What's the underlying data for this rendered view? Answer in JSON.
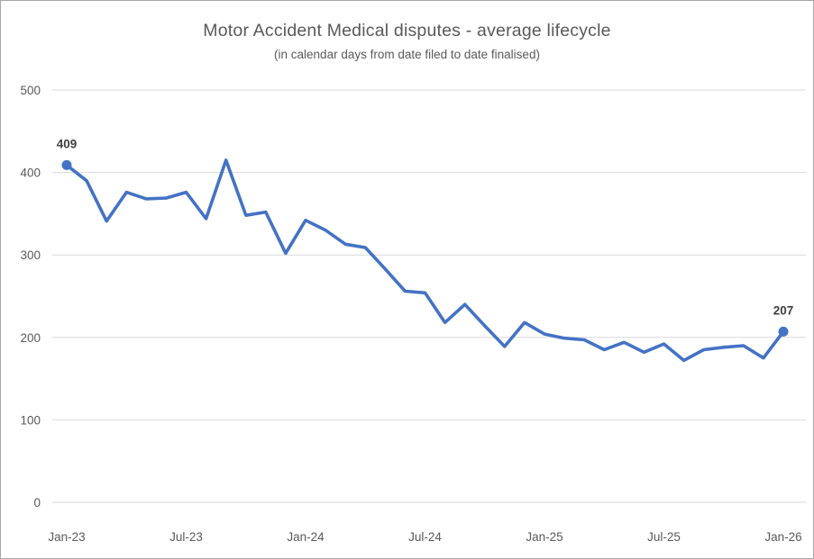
{
  "chart_data": {
    "type": "line",
    "title": "Motor Accident Medical disputes - average lifecycle",
    "subtitle": "(in calendar days from date filed to date finalised)",
    "xlabel": "",
    "ylabel": "",
    "x": [
      "Jan-23",
      "Feb-23",
      "Mar-23",
      "Apr-23",
      "May-23",
      "Jun-23",
      "Jul-23",
      "Aug-23",
      "Sep-23",
      "Oct-23",
      "Nov-23",
      "Dec-23",
      "Jan-24",
      "Feb-24",
      "Mar-24",
      "Apr-24",
      "May-24",
      "Jun-24",
      "Jul-24",
      "Aug-24",
      "Sep-24",
      "Oct-24",
      "Nov-24",
      "Dec-24",
      "Jan-25",
      "Feb-25",
      "Mar-25",
      "Apr-25",
      "May-25",
      "Jun-25",
      "Jul-25",
      "Aug-25",
      "Sep-25",
      "Oct-25",
      "Nov-25",
      "Dec-25",
      "Jan-26"
    ],
    "values": [
      409,
      390,
      341,
      376,
      368,
      369,
      376,
      344,
      415,
      348,
      352,
      302,
      342,
      330,
      313,
      309,
      283,
      256,
      254,
      218,
      240,
      214,
      189,
      218,
      204,
      199,
      197,
      185,
      194,
      182,
      192,
      172,
      185,
      188,
      190,
      175,
      207
    ],
    "x_tick_labels": [
      "Jan-23",
      "Jul-23",
      "Jan-24",
      "Jul-24",
      "Jan-25",
      "Jul-25",
      "Jan-26"
    ],
    "y_ticks": [
      0,
      100,
      200,
      300,
      400,
      500
    ],
    "ylim": [
      0,
      500
    ],
    "grid": true,
    "legend": false,
    "point_labels": [
      {
        "index": 0,
        "text": "409"
      },
      {
        "index": 36,
        "text": "207"
      }
    ]
  },
  "colors": {
    "line": "#4472C4",
    "marker": "#4472C4",
    "grid": "#d9d9d9",
    "axis_text": "#595959",
    "point_label_text": "#3f3f3f",
    "border": "#a6a6a6",
    "background": "#ffffff"
  }
}
